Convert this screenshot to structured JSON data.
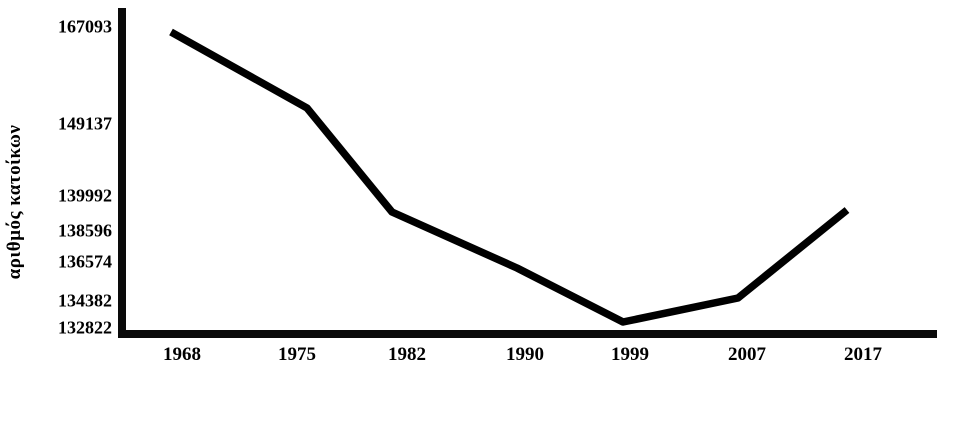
{
  "page": {
    "background_color": "#ffffff",
    "text_color": "#000000"
  },
  "chart_data": {
    "type": "line",
    "title": "",
    "xlabel": "",
    "ylabel": "αριθμός κατοίκων",
    "categories": [
      "1968",
      "1975",
      "1982",
      "1990",
      "1999",
      "2007",
      "2017"
    ],
    "values": [
      167093,
      149137,
      139992,
      136574,
      132822,
      134382,
      138596
    ],
    "series": [
      {
        "name": "αριθμός κατοίκων",
        "values": [
          167093,
          149137,
          139992,
          136574,
          132822,
          134382,
          138596
        ]
      }
    ],
    "y_tick_labels": [
      "167093",
      "149137",
      "139992",
      "138596",
      "136574",
      "134382",
      "132822"
    ],
    "ylim": [
      132822,
      167093
    ],
    "grid": false,
    "legend": false,
    "line_color": "#000000",
    "axis_color": "#0a0a0a"
  }
}
